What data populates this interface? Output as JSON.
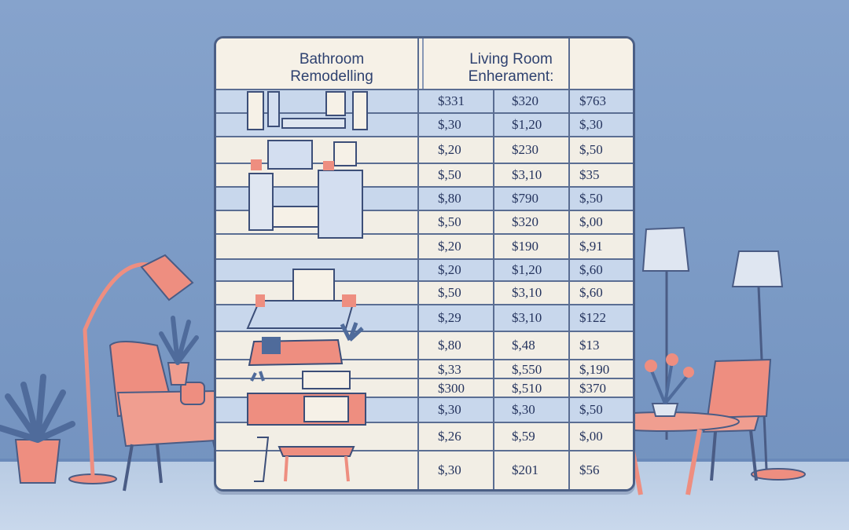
{
  "table": {
    "headers": [
      "Bathroom\nRemodelling",
      "Living Room\nEnheramenti"
    ],
    "header_lines": {
      "bathroom": [
        "Bathroom",
        "Remodelling"
      ],
      "living": [
        "Living Room",
        "Enherament:"
      ]
    },
    "rows": [
      [
        "$331",
        "$320",
        "$763"
      ],
      [
        "$,30",
        "$1,20",
        "$,30"
      ],
      [
        "$,20",
        "$230",
        "$,50"
      ],
      [
        "$,50",
        "$3,10",
        "$35"
      ],
      [
        "$,80",
        "$790",
        "$,50"
      ],
      [
        "$,50",
        "$320",
        "$,00"
      ],
      [
        "$,20",
        "$190",
        "$,91"
      ],
      [
        "$,20",
        "$1,20",
        "$,60"
      ],
      [
        "$,50",
        "$3,10",
        "$,60"
      ],
      [
        "$,29",
        "$3,10",
        "$122"
      ],
      [
        "$,80",
        "$,48",
        "$13"
      ],
      [
        "$,33",
        "$,550",
        "$,190"
      ],
      [
        "$300",
        "$,510",
        "$370"
      ],
      [
        "$,30",
        "$,30",
        "$,50"
      ],
      [
        "$,26",
        "$,59",
        "$,00"
      ],
      [
        "$,30",
        "$201",
        "$56"
      ]
    ]
  },
  "colors": {
    "wall": "#7d9cc6",
    "board": "#f3efe6",
    "row_blue": "#c8d7ec",
    "ink": "#25345e",
    "coral": "#ee8e80",
    "plant": "#4f6b9b"
  },
  "icons": [
    "floor-lamp-icon",
    "armchair-icon",
    "potted-plant-icon",
    "side-table-icon",
    "table-lamp-icon",
    "sofa-icon",
    "kitchen-icon",
    "cabinet-icon"
  ]
}
